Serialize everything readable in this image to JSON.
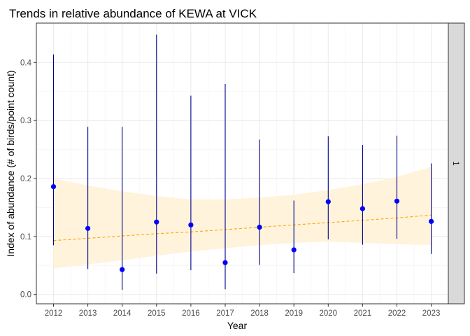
{
  "chart_data": {
    "type": "scatter",
    "title": "Trends in relative abundance of KEWA at VICK",
    "xlabel": "Year",
    "ylabel": "Index of abundance (# of birds/point count)",
    "facet_label": "1",
    "x": [
      "2012",
      "2013",
      "2014",
      "2015",
      "2016",
      "2017",
      "2018",
      "2019",
      "2020",
      "2021",
      "2022",
      "2023"
    ],
    "yticks": [
      "0.0",
      "0.1",
      "0.2",
      "0.3",
      "0.4"
    ],
    "ylim": [
      -0.016,
      0.468
    ],
    "grid": true,
    "legend": "none",
    "series": [
      {
        "type": "point_errorbar",
        "color": "#0000ff",
        "line_color": "#00008b",
        "values": [
          0.186,
          0.114,
          0.043,
          0.125,
          0.12,
          0.055,
          0.116,
          0.077,
          0.16,
          0.148,
          0.161,
          0.126
        ],
        "lower": [
          0.085,
          0.044,
          0.008,
          0.036,
          0.042,
          0.009,
          0.051,
          0.037,
          0.095,
          0.086,
          0.096,
          0.07
        ],
        "upper": [
          0.414,
          0.289,
          0.289,
          0.448,
          0.343,
          0.363,
          0.267,
          0.162,
          0.273,
          0.258,
          0.274,
          0.226
        ]
      },
      {
        "type": "trend",
        "color": "#ffa500",
        "band_color": "#fff3dc",
        "values": [
          0.093,
          0.097,
          0.101,
          0.105,
          0.108,
          0.112,
          0.116,
          0.12,
          0.124,
          0.128,
          0.132,
          0.137
        ],
        "band_lower": [
          0.045,
          0.052,
          0.059,
          0.067,
          0.074,
          0.08,
          0.085,
          0.089,
          0.091,
          0.089,
          0.087,
          0.085
        ],
        "band_upper": [
          0.2,
          0.188,
          0.178,
          0.17,
          0.164,
          0.164,
          0.167,
          0.172,
          0.18,
          0.19,
          0.203,
          0.22
        ]
      }
    ]
  }
}
